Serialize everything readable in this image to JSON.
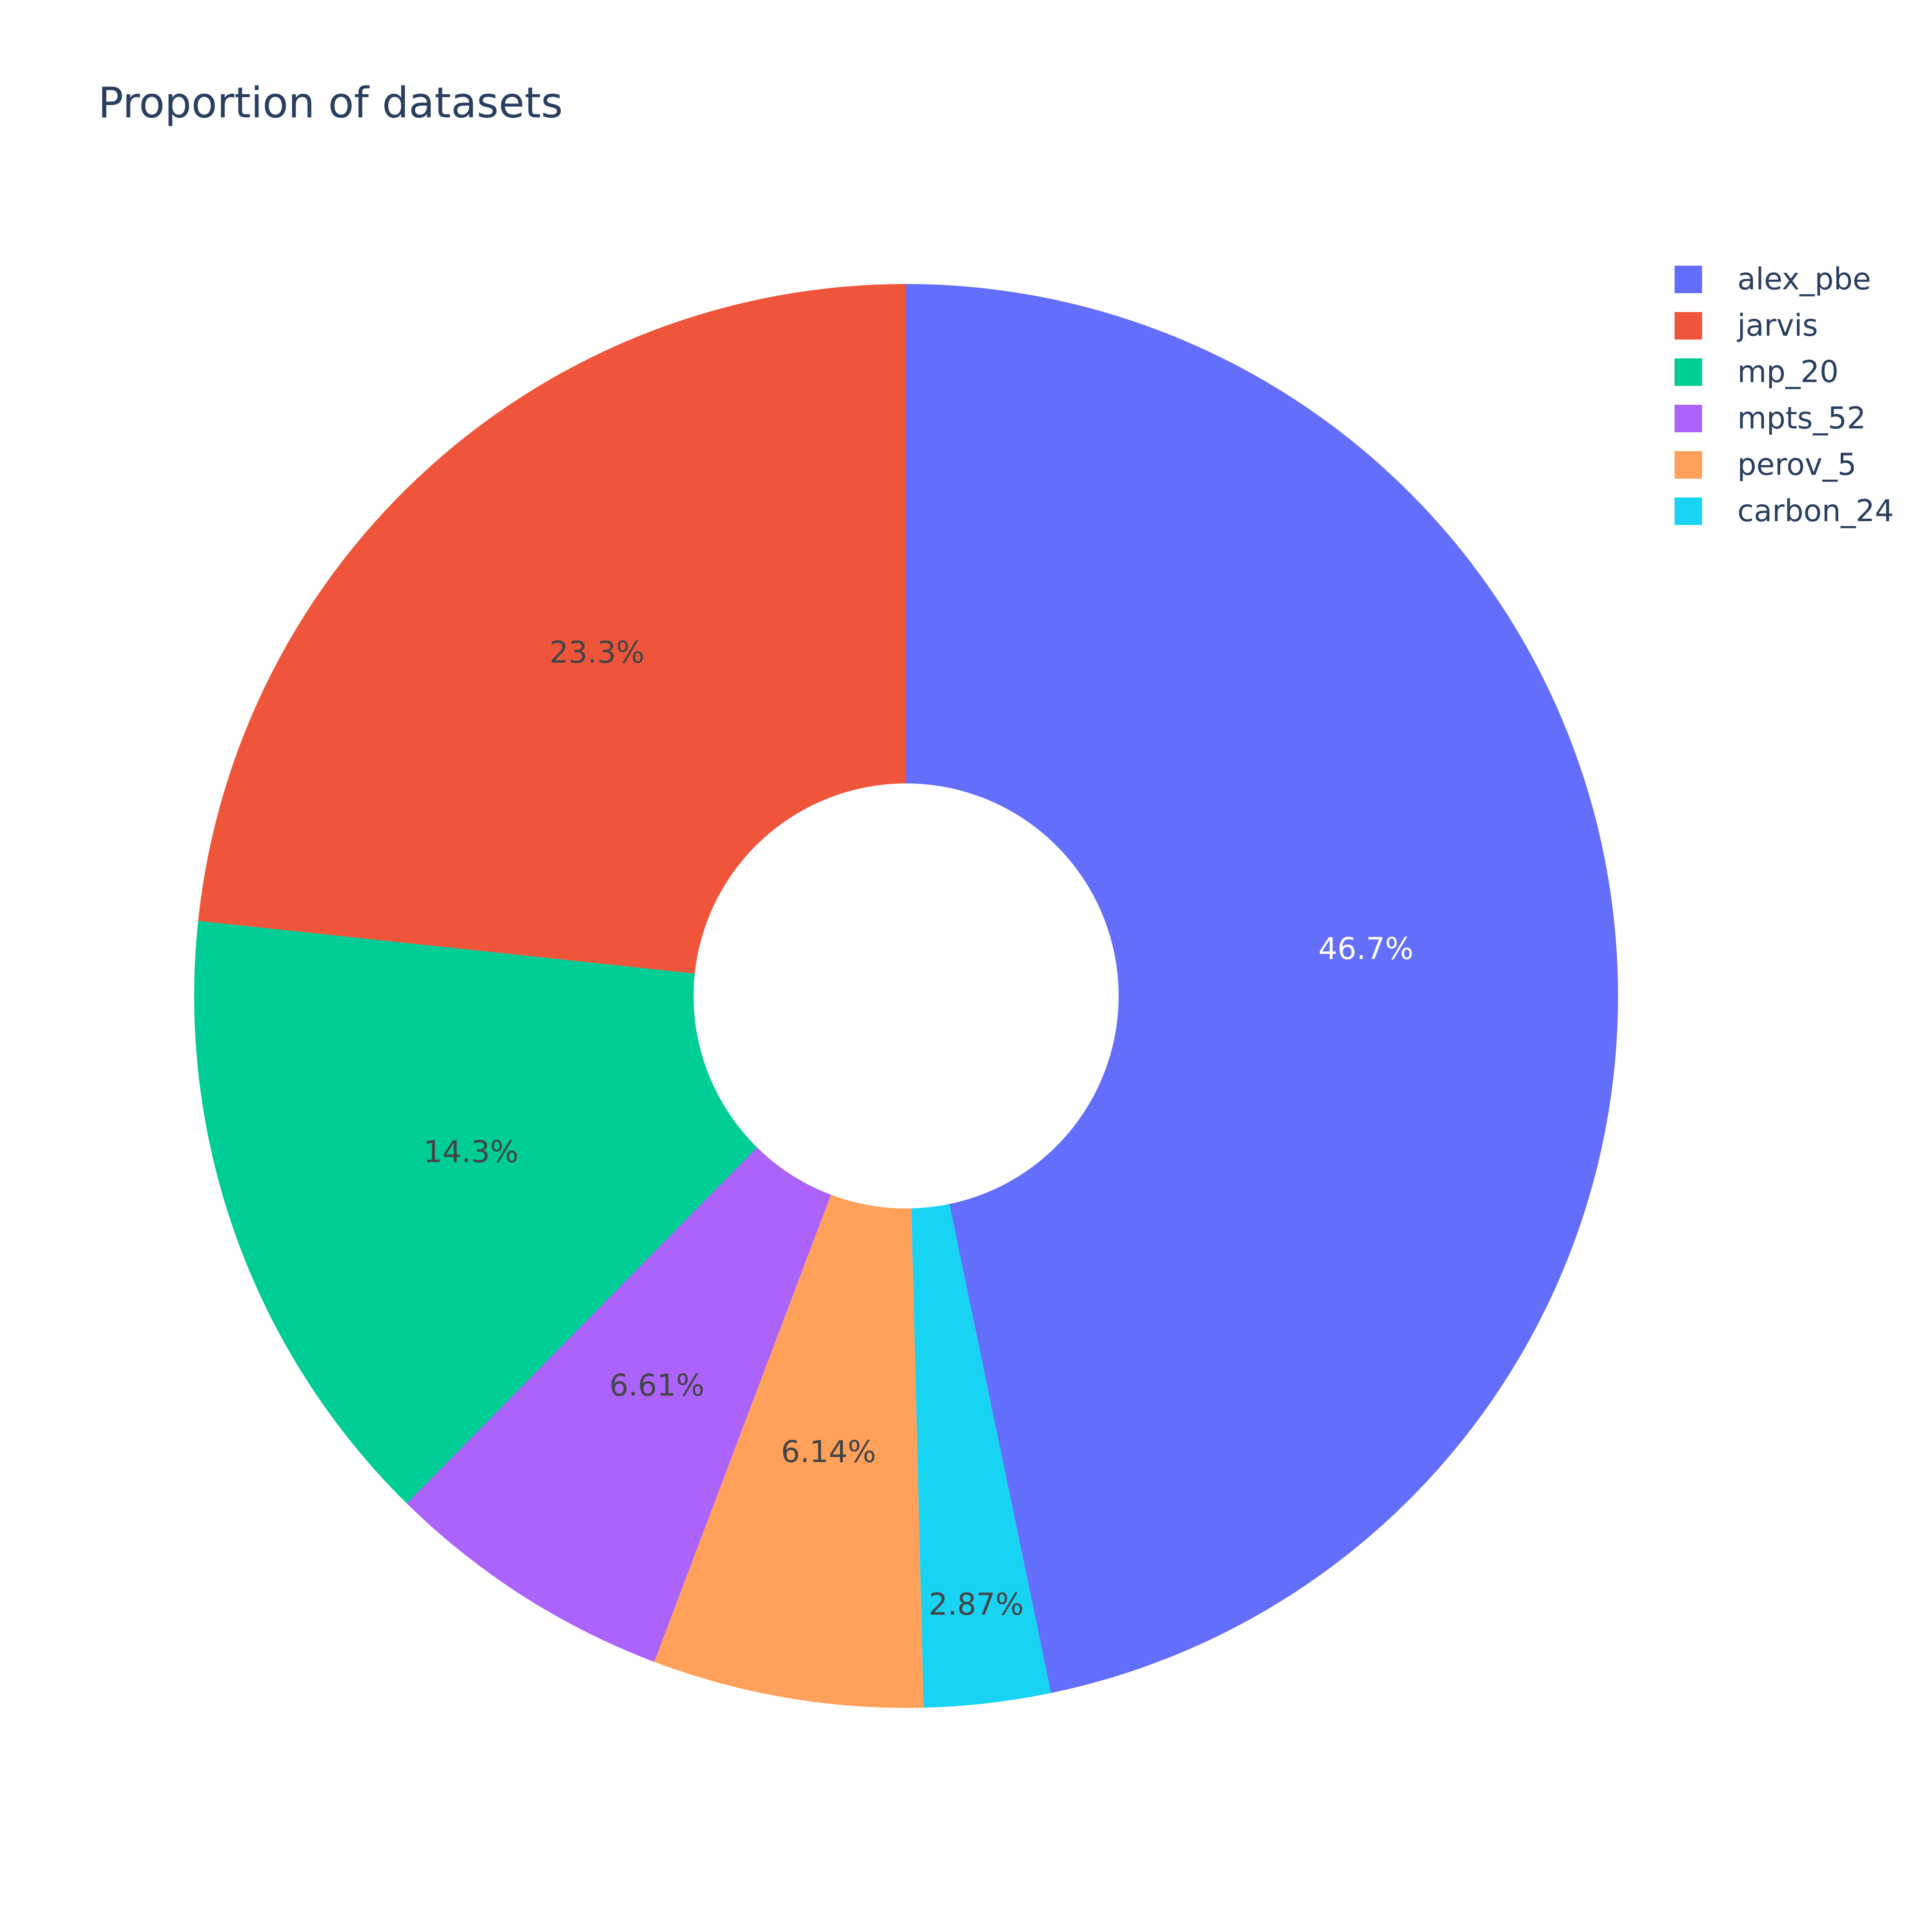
{
  "chart_data": {
    "type": "pie",
    "title": "Proportion of datasets",
    "hole": true,
    "legend_position": "top-right",
    "slices": [
      {
        "name": "alex_pbe",
        "value": 46.7,
        "label": "46.7%",
        "color": "#636efa",
        "label_color": "#ffffff"
      },
      {
        "name": "carbon_24",
        "value": 2.87,
        "label": "2.87%",
        "color": "#19d3f3",
        "label_color": "#444444"
      },
      {
        "name": "perov_5",
        "value": 6.14,
        "label": "6.14%",
        "color": "#ffa15a",
        "label_color": "#444444"
      },
      {
        "name": "mpts_52",
        "value": 6.61,
        "label": "6.61%",
        "color": "#ab63fa",
        "label_color": "#444444"
      },
      {
        "name": "mp_20",
        "value": 14.3,
        "label": "14.3%",
        "color": "#00cc96",
        "label_color": "#444444"
      },
      {
        "name": "jarvis",
        "value": 23.3,
        "label": "23.3%",
        "color": "#ef553b",
        "label_color": "#444444"
      }
    ],
    "legend": [
      "alex_pbe",
      "jarvis",
      "mp_20",
      "mpts_52",
      "perov_5",
      "carbon_24"
    ],
    "direction": "clockwise",
    "start": "top"
  }
}
